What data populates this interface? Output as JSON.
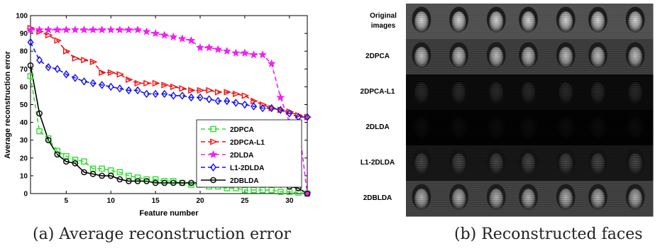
{
  "captions": {
    "a": "(a) Average reconstruction error",
    "b": "(b) Reconstructed faces"
  },
  "chart_data": {
    "type": "line",
    "title": "",
    "xlabel": "Feature number",
    "ylabel": "Average reconstruction error",
    "xlim": [
      1,
      32
    ],
    "ylim": [
      0,
      100
    ],
    "xticks": [
      5,
      10,
      15,
      20,
      25,
      30
    ],
    "yticks": [
      0,
      10,
      20,
      30,
      40,
      50,
      60,
      70,
      80,
      90,
      100
    ],
    "grid": false,
    "legend_position": "lower-right",
    "x": [
      1,
      2,
      3,
      4,
      5,
      6,
      7,
      8,
      9,
      10,
      11,
      12,
      13,
      14,
      15,
      16,
      17,
      18,
      19,
      20,
      21,
      22,
      23,
      24,
      25,
      26,
      27,
      28,
      29,
      30,
      31,
      32
    ],
    "series": [
      {
        "name": "2DPCA",
        "color": "#33dd33",
        "marker": "square",
        "line": "dashed",
        "values": [
          66,
          35,
          31,
          24,
          21,
          19,
          18,
          14,
          14,
          13,
          12,
          10,
          9,
          8,
          8,
          7,
          7,
          6,
          5,
          5,
          4,
          4,
          3,
          3,
          2,
          2,
          2,
          2,
          1,
          1,
          0.5,
          0
        ]
      },
      {
        "name": "2DPCA-L1",
        "color": "#ee1111",
        "marker": "triangle-right",
        "line": "dashed",
        "values": [
          93,
          91,
          89,
          86,
          80,
          76,
          75,
          74,
          68,
          68,
          67,
          64,
          62,
          62,
          62,
          61,
          60,
          59,
          58,
          58,
          58,
          57,
          57,
          56,
          55,
          52,
          50,
          48,
          47,
          46,
          44,
          43
        ]
      },
      {
        "name": "2DLDA",
        "color": "#ee22ee",
        "marker": "star",
        "line": "dashed",
        "values": [
          92,
          92,
          92,
          92,
          92,
          92,
          92,
          92,
          92,
          92,
          92,
          92,
          92,
          91,
          90,
          89,
          88,
          87,
          86,
          82,
          82,
          81,
          80,
          79,
          79,
          78,
          78,
          73,
          54,
          40,
          40,
          0
        ]
      },
      {
        "name": "L1-2DLDA",
        "color": "#1111ee",
        "marker": "diamond",
        "line": "dashed",
        "values": [
          85,
          75,
          71,
          70,
          67,
          65,
          63,
          62,
          61,
          60,
          59,
          58,
          58,
          56,
          56,
          56,
          55,
          55,
          54,
          54,
          53,
          52,
          52,
          51,
          50,
          49,
          48,
          48,
          47,
          45,
          43,
          43
        ]
      },
      {
        "name": "2DBLDA",
        "color": "#000000",
        "marker": "circle",
        "line": "solid",
        "values": [
          72,
          45,
          30,
          22,
          18,
          17,
          12,
          11,
          10,
          10,
          8,
          7,
          7,
          7,
          6,
          6,
          6,
          6,
          6,
          6,
          6,
          6,
          6,
          6,
          6,
          6,
          6,
          5,
          5,
          4,
          3,
          0
        ]
      }
    ]
  },
  "faces": {
    "rows": [
      {
        "label": "Original images",
        "style": "original"
      },
      {
        "label": "2DPCA",
        "style": "pca"
      },
      {
        "label": "2DPCA-L1",
        "style": "dark"
      },
      {
        "label": "2DLDA",
        "style": "verydark"
      },
      {
        "label": "L1-2DLDA",
        "style": "striped"
      },
      {
        "label": "2DBLDA",
        "style": "blda"
      }
    ],
    "columns": 7
  }
}
